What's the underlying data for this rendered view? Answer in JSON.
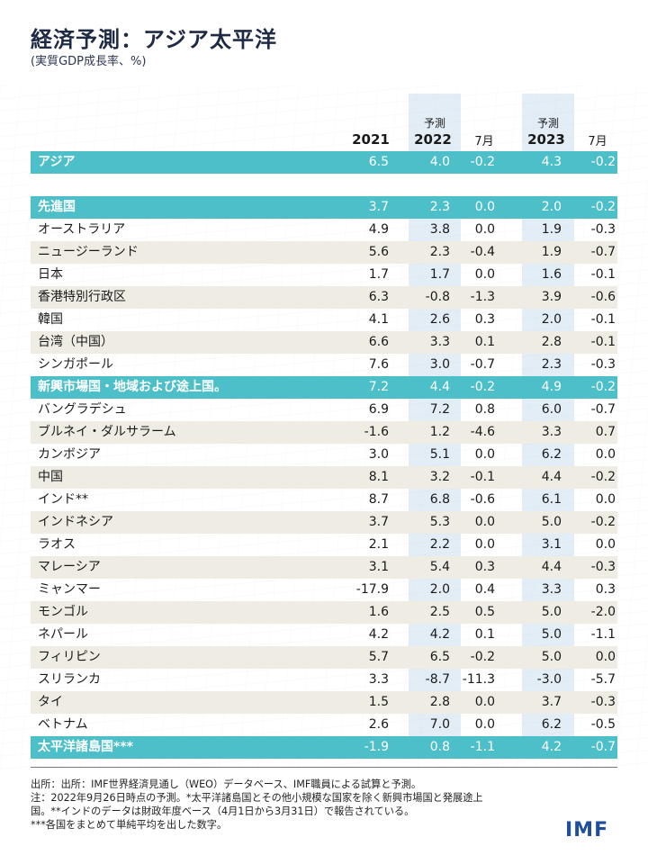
{
  "title": "経済予測：アジア太平洋",
  "subtitle": "(実質GDP成長率、%)",
  "headers": {
    "forecast1": "予測",
    "forecast2": "予測",
    "y2021": "2021",
    "y2022": "2022",
    "m1": "7月",
    "y2023": "2023",
    "m2": "7月"
  },
  "rows": [
    {
      "label": "アジア",
      "v": [
        "6.5",
        "4.0",
        "-0.2",
        "4.3",
        "-0.2"
      ],
      "style": "teal"
    },
    {
      "label": "",
      "v": [
        "",
        "",
        "",
        "",
        ""
      ],
      "style": "spacer"
    },
    {
      "label": "先進国",
      "v": [
        "3.7",
        "2.3",
        "0.0",
        "2.0",
        "-0.2"
      ],
      "style": "teal"
    },
    {
      "label": "オーストラリア",
      "v": [
        "4.9",
        "3.8",
        "0.0",
        "1.9",
        "-0.3"
      ],
      "style": "plain"
    },
    {
      "label": "ニュージーランド",
      "v": [
        "5.6",
        "2.3",
        "-0.4",
        "1.9",
        "-0.7"
      ],
      "style": "alt"
    },
    {
      "label": "日本",
      "v": [
        "1.7",
        "1.7",
        "0.0",
        "1.6",
        "-0.1"
      ],
      "style": "plain"
    },
    {
      "label": "香港特別行政区",
      "v": [
        "6.3",
        "-0.8",
        "-1.3",
        "3.9",
        "-0.6"
      ],
      "style": "alt"
    },
    {
      "label": "韓国",
      "v": [
        "4.1",
        "2.6",
        "0.3",
        "2.0",
        "-0.1"
      ],
      "style": "plain"
    },
    {
      "label": "台湾（中国）",
      "v": [
        "6.6",
        "3.3",
        "0.1",
        "2.8",
        "-0.1"
      ],
      "style": "alt"
    },
    {
      "label": "シンガポール",
      "v": [
        "7.6",
        "3.0",
        "-0.7",
        "2.3",
        "-0.3"
      ],
      "style": "plain"
    },
    {
      "label": "新興市場国・地域および途上国。",
      "v": [
        "7.2",
        "4.4",
        "-0.2",
        "4.9",
        "-0.2"
      ],
      "style": "teal"
    },
    {
      "label": "バングラデシュ",
      "v": [
        "6.9",
        "7.2",
        "0.8",
        "6.0",
        "-0.7"
      ],
      "style": "plain"
    },
    {
      "label": "ブルネイ・ダルサラーム",
      "v": [
        "-1.6",
        "1.2",
        "-4.6",
        "3.3",
        "0.7"
      ],
      "style": "alt"
    },
    {
      "label": "カンボジア",
      "v": [
        "3.0",
        "5.1",
        "0.0",
        "6.2",
        "0.0"
      ],
      "style": "plain"
    },
    {
      "label": "中国",
      "v": [
        "8.1",
        "3.2",
        "-0.1",
        "4.4",
        "-0.2"
      ],
      "style": "alt"
    },
    {
      "label": "インド**",
      "v": [
        "8.7",
        "6.8",
        "-0.6",
        "6.1",
        "0.0"
      ],
      "style": "plain"
    },
    {
      "label": "インドネシア",
      "v": [
        "3.7",
        "5.3",
        "0.0",
        "5.0",
        "-0.2"
      ],
      "style": "alt"
    },
    {
      "label": "ラオス",
      "v": [
        "2.1",
        "2.2",
        "0.0",
        "3.1",
        "0.0"
      ],
      "style": "plain"
    },
    {
      "label": "マレーシア",
      "v": [
        "3.1",
        "5.4",
        "0.3",
        "4.4",
        "-0.3"
      ],
      "style": "alt"
    },
    {
      "label": "ミャンマー",
      "v": [
        "-17.9",
        "2.0",
        "0.4",
        "3.3",
        "0.3"
      ],
      "style": "plain"
    },
    {
      "label": "モンゴル",
      "v": [
        "1.6",
        "2.5",
        "0.5",
        "5.0",
        "-2.0"
      ],
      "style": "alt"
    },
    {
      "label": "ネパール",
      "v": [
        "4.2",
        "4.2",
        "0.1",
        "5.0",
        "-1.1"
      ],
      "style": "plain"
    },
    {
      "label": "フィリピン",
      "v": [
        "5.7",
        "6.5",
        "-0.2",
        "5.0",
        "0.0"
      ],
      "style": "alt"
    },
    {
      "label": "スリランカ",
      "v": [
        "3.3",
        "-8.7",
        "-11.3",
        "-3.0",
        "-5.7"
      ],
      "style": "plain"
    },
    {
      "label": "タイ",
      "v": [
        "1.5",
        "2.8",
        "0.0",
        "3.7",
        "-0.3"
      ],
      "style": "alt"
    },
    {
      "label": "ベトナム",
      "v": [
        "2.6",
        "7.0",
        "0.0",
        "6.2",
        "-0.5"
      ],
      "style": "plain"
    },
    {
      "label": "太平洋諸島国***",
      "v": [
        "-1.9",
        "0.8",
        "-1.1",
        "4.2",
        "-0.7"
      ],
      "style": "teal"
    }
  ],
  "notes": [
    "出所：出所：IMF世界経済見通し（WEO）データベース、IMF職員による試算と予測。",
    "注：2022年9月26日時点の予測。*太平洋諸島国とその他小規模な国家を除く新興市場国と発展途上",
    "国。**インドのデータは財政年度ベース（4月1日から3月31日）で報告されている。",
    "***各国をまとめて単純平均を出した数字。"
  ],
  "logo": "IMF"
}
